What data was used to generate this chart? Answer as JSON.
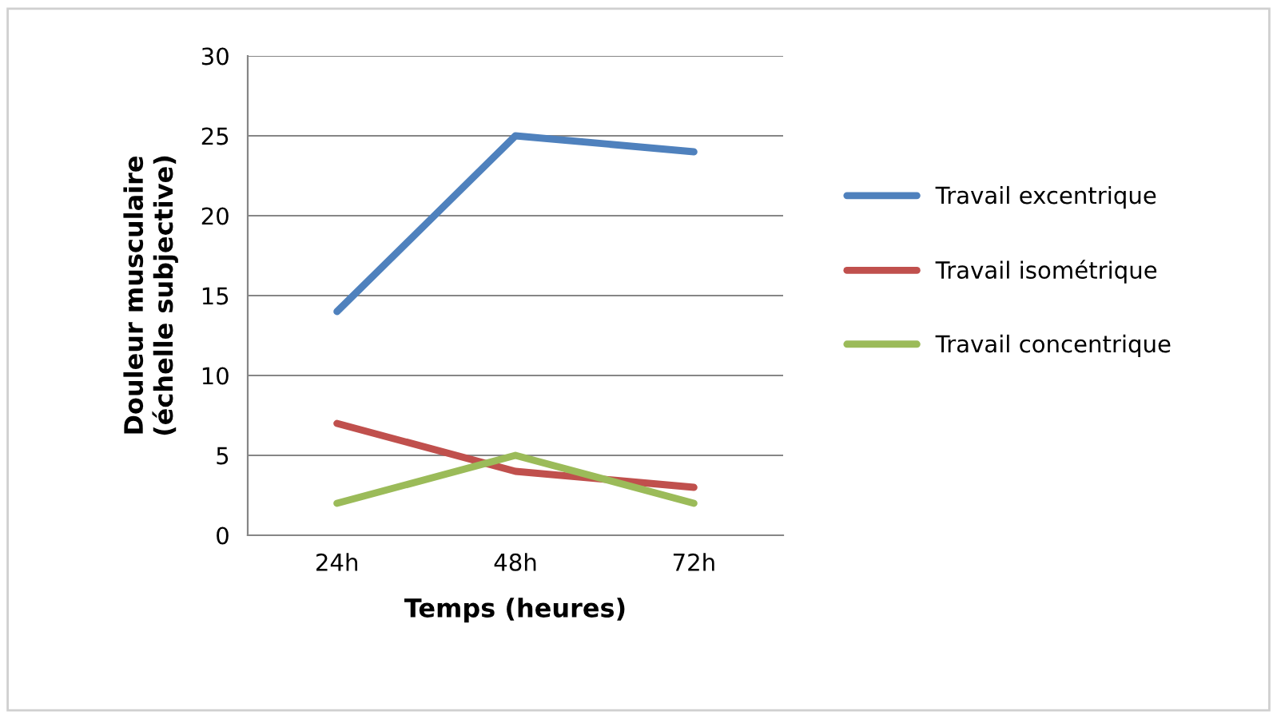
{
  "chart_data": {
    "type": "line",
    "xlabel": "Temps (heures)",
    "ylabel": "Douleur musculaire\n(échelle subjective)",
    "categories": [
      "24h",
      "48h",
      "72h"
    ],
    "series": [
      {
        "name": "Travail excentrique",
        "color": "#4f81bd",
        "values": [
          14,
          25,
          24
        ]
      },
      {
        "name": "Travail isométrique",
        "color": "#c0504d",
        "values": [
          7,
          4,
          3
        ]
      },
      {
        "name": "Travail concentrique",
        "color": "#9bbb59",
        "values": [
          2,
          5,
          2
        ]
      }
    ],
    "ylim": [
      0,
      30
    ],
    "yticks": [
      0,
      5,
      10,
      15,
      20,
      25,
      30
    ],
    "grid": "y",
    "legend": "right",
    "marker": "none",
    "line_style": "solid"
  }
}
